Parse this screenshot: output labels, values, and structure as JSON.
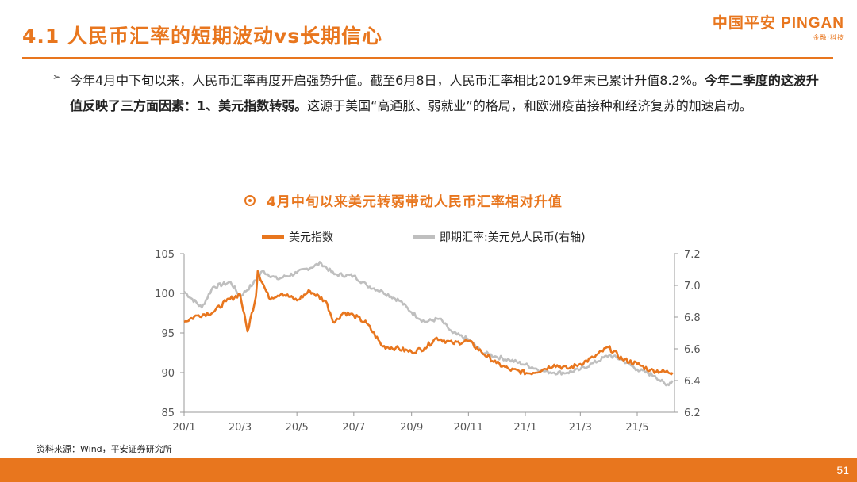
{
  "header": {
    "title": "4.1 人民币汇率的短期波动vs长期信心",
    "logo_text": "中国平安 PINGAN",
    "logo_sub": "金融·科技"
  },
  "body": {
    "bullet": "➢",
    "para_1": "今年4月中下旬以来，人民币汇率再度开启强势升值。截至6月8日，人民币汇率相比2019年末已累计升值8.2%。",
    "para_2": "今年二季度的这波升值反映了三方面因素：1、美元指数转弱。",
    "para_3": "这源于美国“高通胀、弱就业”的格局，和欧洲疫苗接种和经济复苏的加速启动。"
  },
  "chart_title": "4月中旬以来美元转弱带动人民币汇率相对升值",
  "chart_data": {
    "type": "line",
    "title": "4月中旬以来美元转弱带动人民币汇率相对升值",
    "x_ticks": [
      "20/1",
      "20/3",
      "20/5",
      "20/7",
      "20/9",
      "20/11",
      "21/1",
      "21/3",
      "21/5"
    ],
    "x_range": [
      "2020-01",
      "2021-06-10"
    ],
    "y_left": {
      "ticks": [
        85,
        90,
        95,
        100,
        105
      ],
      "range": [
        85,
        105
      ]
    },
    "y_right": {
      "ticks": [
        "6.2",
        "6.4",
        "6.6",
        "6.8",
        "7.0",
        "7.2"
      ],
      "range": [
        6.2,
        7.2
      ]
    },
    "grid": false,
    "legend_position": "top",
    "series": [
      {
        "name": "美元指数",
        "axis": "left",
        "color": "#e8761e",
        "points": [
          [
            "2020-01-01",
            96.4
          ],
          [
            "2020-01-15",
            97.2
          ],
          [
            "2020-02-01",
            97.6
          ],
          [
            "2020-02-15",
            99.0
          ],
          [
            "2020-03-01",
            99.9
          ],
          [
            "2020-03-09",
            95.2
          ],
          [
            "2020-03-18",
            99.6
          ],
          [
            "2020-03-20",
            102.8
          ],
          [
            "2020-04-01",
            99.4
          ],
          [
            "2020-04-15",
            100.0
          ],
          [
            "2020-05-01",
            99.1
          ],
          [
            "2020-05-15",
            100.3
          ],
          [
            "2020-06-01",
            99.0
          ],
          [
            "2020-06-10",
            96.3
          ],
          [
            "2020-06-20",
            97.6
          ],
          [
            "2020-07-01",
            97.2
          ],
          [
            "2020-07-15",
            96.2
          ],
          [
            "2020-08-01",
            93.3
          ],
          [
            "2020-08-15",
            93.1
          ],
          [
            "2020-09-01",
            92.6
          ],
          [
            "2020-09-15",
            93.1
          ],
          [
            "2020-09-28",
            94.4
          ],
          [
            "2020-10-15",
            93.7
          ],
          [
            "2020-11-01",
            94.0
          ],
          [
            "2020-11-15",
            92.6
          ],
          [
            "2020-12-01",
            91.2
          ],
          [
            "2020-12-15",
            90.4
          ],
          [
            "2021-01-05",
            89.9
          ],
          [
            "2021-01-20",
            90.4
          ],
          [
            "2021-02-01",
            91.0
          ],
          [
            "2021-02-15",
            90.5
          ],
          [
            "2021-03-01",
            91.1
          ],
          [
            "2021-03-15",
            91.9
          ],
          [
            "2021-03-31",
            93.2
          ],
          [
            "2021-04-15",
            91.7
          ],
          [
            "2021-05-01",
            91.1
          ],
          [
            "2021-05-15",
            90.3
          ],
          [
            "2021-06-08",
            90.0
          ]
        ]
      },
      {
        "name": "即期汇率:美元兑人民币(右轴)",
        "axis": "right",
        "color": "#bfbfbf",
        "points": [
          [
            "2020-01-01",
            6.96
          ],
          [
            "2020-01-20",
            6.86
          ],
          [
            "2020-02-01",
            6.99
          ],
          [
            "2020-02-20",
            7.02
          ],
          [
            "2020-03-01",
            6.93
          ],
          [
            "2020-03-15",
            7.01
          ],
          [
            "2020-03-25",
            7.09
          ],
          [
            "2020-04-10",
            7.04
          ],
          [
            "2020-05-01",
            7.08
          ],
          [
            "2020-05-27",
            7.14
          ],
          [
            "2020-06-10",
            7.07
          ],
          [
            "2020-07-01",
            7.06
          ],
          [
            "2020-07-15",
            7.0
          ],
          [
            "2020-08-01",
            6.96
          ],
          [
            "2020-08-20",
            6.9
          ],
          [
            "2020-09-01",
            6.83
          ],
          [
            "2020-09-15",
            6.77
          ],
          [
            "2020-10-01",
            6.79
          ],
          [
            "2020-10-15",
            6.7
          ],
          [
            "2020-11-01",
            6.66
          ],
          [
            "2020-11-15",
            6.58
          ],
          [
            "2020-12-01",
            6.55
          ],
          [
            "2020-12-15",
            6.53
          ],
          [
            "2021-01-01",
            6.5
          ],
          [
            "2021-01-20",
            6.46
          ],
          [
            "2021-02-01",
            6.45
          ],
          [
            "2021-02-15",
            6.45
          ],
          [
            "2021-03-01",
            6.47
          ],
          [
            "2021-03-15",
            6.51
          ],
          [
            "2021-04-01",
            6.56
          ],
          [
            "2021-04-15",
            6.53
          ],
          [
            "2021-05-01",
            6.47
          ],
          [
            "2021-05-20",
            6.43
          ],
          [
            "2021-06-01",
            6.37
          ],
          [
            "2021-06-08",
            6.4
          ]
        ]
      }
    ]
  },
  "source": "资料来源：Wind，平安证券研究所",
  "page_number": "51"
}
